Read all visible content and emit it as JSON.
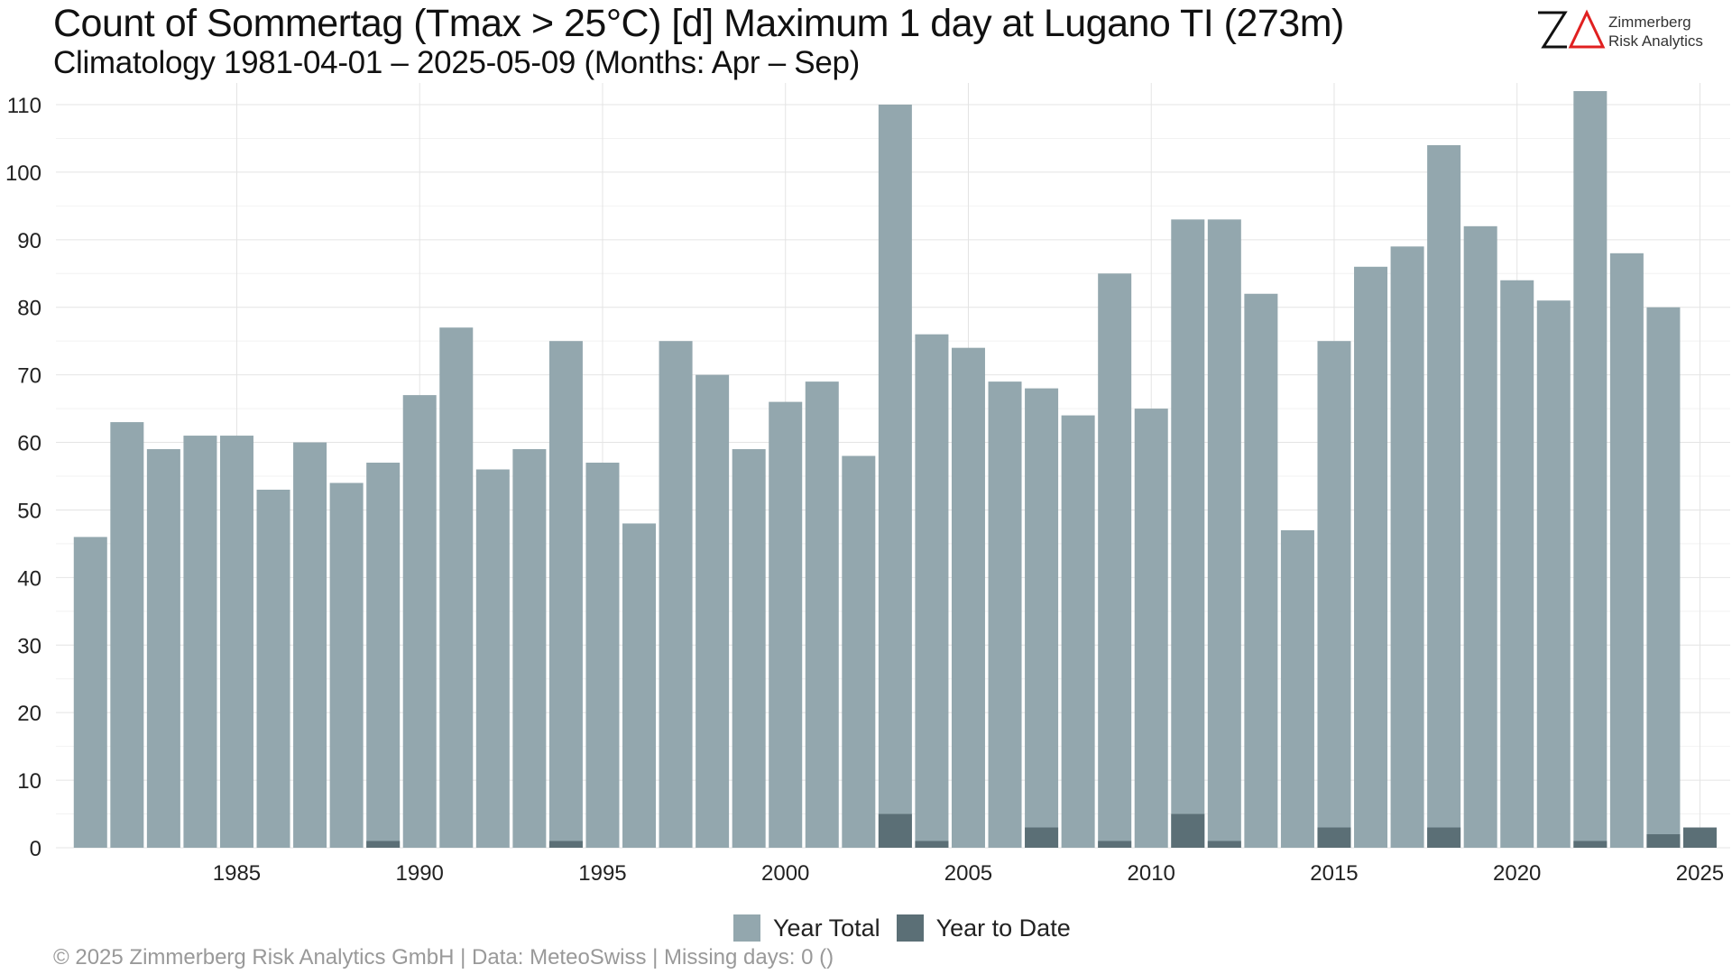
{
  "header": {
    "title": "Count of Sommertag (Tmax > 25°C) [d] Maximum 1 day at Lugano  TI (273m)",
    "subtitle": "Climatology 1981-04-01 – 2025-05-09 (Months: Apr – Sep)"
  },
  "logo": {
    "mark": "ZΔ",
    "line1": "Zimmerberg",
    "line2": "Risk Analytics",
    "accent_color": "#e02020"
  },
  "footer": {
    "text": "©  2025 Zimmerberg Risk Analytics GmbH | Data: MeteoSwiss | Missing days: 0 ()"
  },
  "chart_data": {
    "type": "bar",
    "title": "Count of Sommertag (Tmax > 25°C) [d] Maximum 1 day at Lugano  TI (273m)",
    "subtitle": "Climatology 1981-04-01 – 2025-05-09 (Months: Apr – Sep)",
    "xlabel": "",
    "ylabel": "",
    "ylim": [
      0,
      110
    ],
    "xlim": [
      1981,
      2025
    ],
    "yticks": [
      0,
      10,
      20,
      30,
      40,
      50,
      60,
      70,
      80,
      90,
      100,
      110
    ],
    "xticks": [
      1985,
      1990,
      1995,
      2000,
      2005,
      2010,
      2015,
      2020,
      2025
    ],
    "grid": true,
    "legend_position": "bottom",
    "x": [
      1981,
      1982,
      1983,
      1984,
      1985,
      1986,
      1987,
      1988,
      1989,
      1990,
      1991,
      1992,
      1993,
      1994,
      1995,
      1996,
      1997,
      1998,
      1999,
      2000,
      2001,
      2002,
      2003,
      2004,
      2005,
      2006,
      2007,
      2008,
      2009,
      2010,
      2011,
      2012,
      2013,
      2014,
      2015,
      2016,
      2017,
      2018,
      2019,
      2020,
      2021,
      2022,
      2023,
      2024,
      2025
    ],
    "series": [
      {
        "name": "Year Total",
        "color": "#93a7ae",
        "values": [
          46,
          63,
          59,
          61,
          61,
          53,
          60,
          54,
          57,
          67,
          77,
          56,
          59,
          75,
          57,
          48,
          75,
          70,
          59,
          66,
          69,
          58,
          110,
          76,
          74,
          69,
          68,
          64,
          85,
          65,
          93,
          93,
          82,
          47,
          75,
          86,
          89,
          104,
          92,
          84,
          81,
          112,
          88,
          80,
          null
        ]
      },
      {
        "name": "Year to Date",
        "color": "#5b6f76",
        "values": [
          0,
          0,
          0,
          0,
          0,
          0,
          0,
          0,
          1,
          0,
          0,
          0,
          0,
          1,
          0,
          0,
          0,
          0,
          0,
          0,
          0,
          0,
          5,
          1,
          0,
          0,
          3,
          0,
          1,
          0,
          5,
          1,
          0,
          0,
          3,
          0,
          0,
          3,
          0,
          0,
          0,
          1,
          0,
          2,
          3
        ]
      }
    ]
  }
}
